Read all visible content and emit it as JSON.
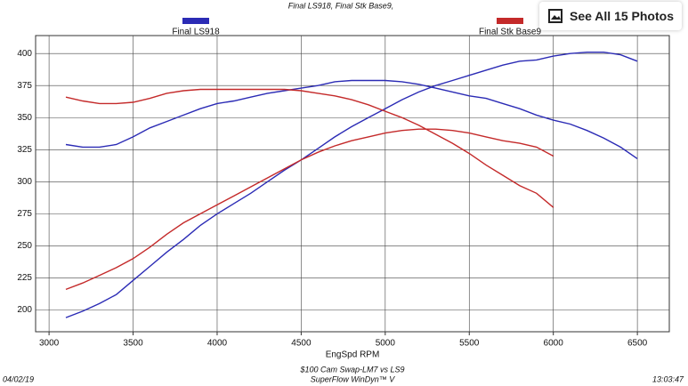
{
  "chart_data": {
    "type": "line",
    "title": "Final LS918, Final Stk Base9,",
    "x_label": "EngSpd RPM",
    "footer": [
      "$100 Cam Swap-LM7 vs LS9",
      "SuperFlow WinDyn™ V"
    ],
    "date": "04/02/19",
    "time": "13:03:47",
    "xlim": [
      2920,
      6690
    ],
    "ylim": [
      183,
      414
    ],
    "xticks": [
      3000,
      3500,
      4000,
      4500,
      5000,
      5500,
      6000,
      6500
    ],
    "yticks": [
      200,
      225,
      250,
      275,
      300,
      325,
      350,
      375,
      400
    ],
    "grid": true,
    "series": [
      {
        "name": "Final LS918",
        "color": "#2b2bb5",
        "x": [
          3100,
          3200,
          3300,
          3400,
          3500,
          3600,
          3700,
          3800,
          3900,
          4000,
          4100,
          4200,
          4300,
          4400,
          4500,
          4600,
          4700,
          4800,
          4900,
          5000,
          5100,
          5200,
          5300,
          5400,
          5500,
          5600,
          5700,
          5800,
          5900,
          6000,
          6100,
          6200,
          6300,
          6400,
          6500
        ],
        "curves": [
          [
            329,
            327,
            327,
            329,
            335,
            342,
            347,
            352,
            357,
            361,
            363,
            366,
            369,
            371,
            373,
            375,
            378,
            379,
            379,
            379,
            378,
            376,
            373,
            370,
            367,
            365,
            361,
            357,
            352,
            348,
            345,
            340,
            334,
            327,
            318
          ],
          [
            194,
            199,
            205,
            212,
            223,
            234,
            245,
            255,
            266,
            275,
            283,
            291,
            300,
            309,
            317,
            326,
            335,
            343,
            350,
            357,
            364,
            370,
            375,
            379,
            383,
            387,
            391,
            394,
            395,
            398,
            400,
            401,
            401,
            399,
            394
          ]
        ]
      },
      {
        "name": "Final Stk Base9",
        "color": "#c42a2a",
        "x": [
          3100,
          3200,
          3300,
          3400,
          3500,
          3600,
          3700,
          3800,
          3900,
          4000,
          4100,
          4200,
          4300,
          4400,
          4500,
          4600,
          4700,
          4800,
          4900,
          5000,
          5100,
          5200,
          5300,
          5400,
          5500,
          5600,
          5700,
          5800,
          5900,
          6000
        ],
        "curves": [
          [
            366,
            363,
            361,
            361,
            362,
            365,
            369,
            371,
            372,
            372,
            372,
            372,
            372,
            372,
            371,
            369,
            367,
            364,
            360,
            355,
            350,
            344,
            337,
            330,
            322,
            313,
            305,
            297,
            291,
            280
          ],
          [
            216,
            221,
            227,
            233,
            240,
            249,
            259,
            268,
            275,
            282,
            289,
            296,
            303,
            310,
            317,
            323,
            328,
            332,
            335,
            338,
            340,
            341,
            341,
            340,
            338,
            335,
            332,
            330,
            327,
            320
          ]
        ]
      }
    ]
  },
  "button": "See All 15 Photos"
}
